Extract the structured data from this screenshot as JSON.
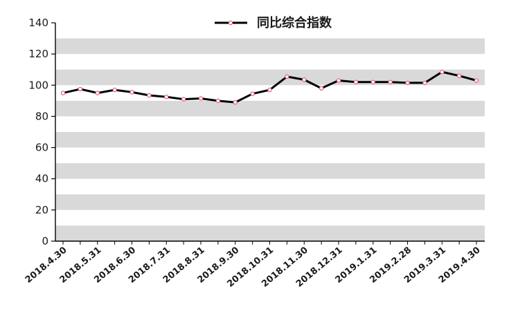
{
  "chart_data": {
    "type": "line",
    "title": "",
    "xlabel": "",
    "ylabel": "",
    "ylim": [
      0,
      140
    ],
    "y_ticks": [
      "0",
      "20",
      "40",
      "60",
      "80",
      "100",
      "120",
      "140"
    ],
    "x_tick_labels": [
      "2018.4.30",
      "2018.5.31",
      "2018.6.30",
      "2018.7.31",
      "2018.8.31",
      "2018.9.30",
      "2018.10.31",
      "2018.11.30",
      "2018.12.31",
      "2019.1.31",
      "2019.2.28",
      "2019.3.31",
      "2019.4.30"
    ],
    "grid": "alternating horizontal bands",
    "legend_position": "top-center",
    "series": [
      {
        "name": "同比综合指数",
        "color": "#000000",
        "marker_color": "#e06070",
        "values": [
          95,
          97.5,
          95,
          97,
          95.5,
          93.5,
          92.5,
          91,
          91.5,
          90,
          89,
          94.5,
          97,
          105.5,
          103.5,
          98,
          103,
          102,
          102,
          102,
          101.5,
          101.5,
          108.5,
          106,
          103
        ]
      }
    ]
  }
}
